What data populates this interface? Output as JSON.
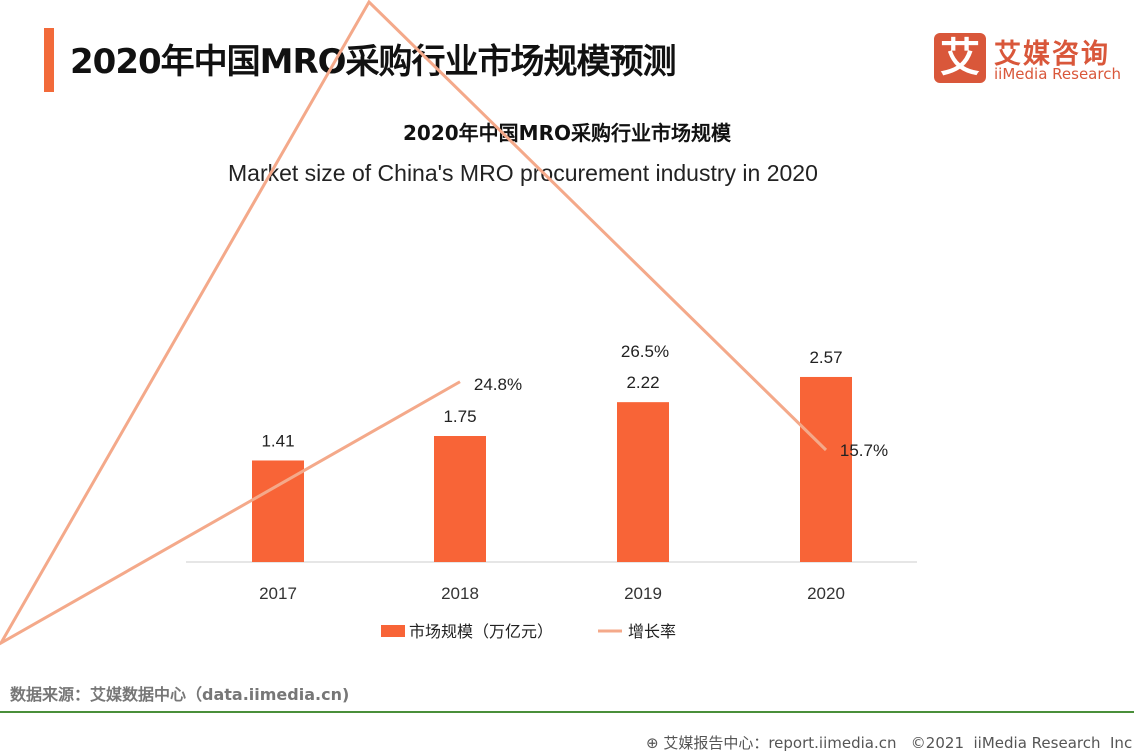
{
  "header": {
    "title": "2020年中国MRO采购行业市场规模预测"
  },
  "logo": {
    "mark": "艾",
    "cn": "艾媒咨询",
    "en": "iiMedia Research"
  },
  "chart_data": {
    "type": "bar+line",
    "title": "2020年中国MRO采购行业市场规模",
    "subtitle": "Market size of China's MRO procurement industry in 2020",
    "categories": [
      "2017",
      "2018",
      "2019",
      "2020"
    ],
    "series": [
      {
        "name": "市场规模（万亿元）",
        "type": "bar",
        "values": [
          1.41,
          1.75,
          2.22,
          2.57
        ],
        "labels": [
          "1.41",
          "1.75",
          "2.22",
          "2.57"
        ],
        "color": "#f86437"
      },
      {
        "name": "增长率",
        "type": "line",
        "values": [
          null,
          24.8,
          26.5,
          15.7
        ],
        "labels": [
          "",
          "24.8%",
          "26.5%",
          "15.7%"
        ],
        "color": "#f4a98a"
      }
    ],
    "legend": "bottom",
    "grid": false
  },
  "footer": {
    "source": "数据来源：艾媒数据中心（data.iimedia.cn)",
    "report": "艾媒报告中心：report.iimedia.cn   ©2021  iiMedia Research  Inc"
  }
}
